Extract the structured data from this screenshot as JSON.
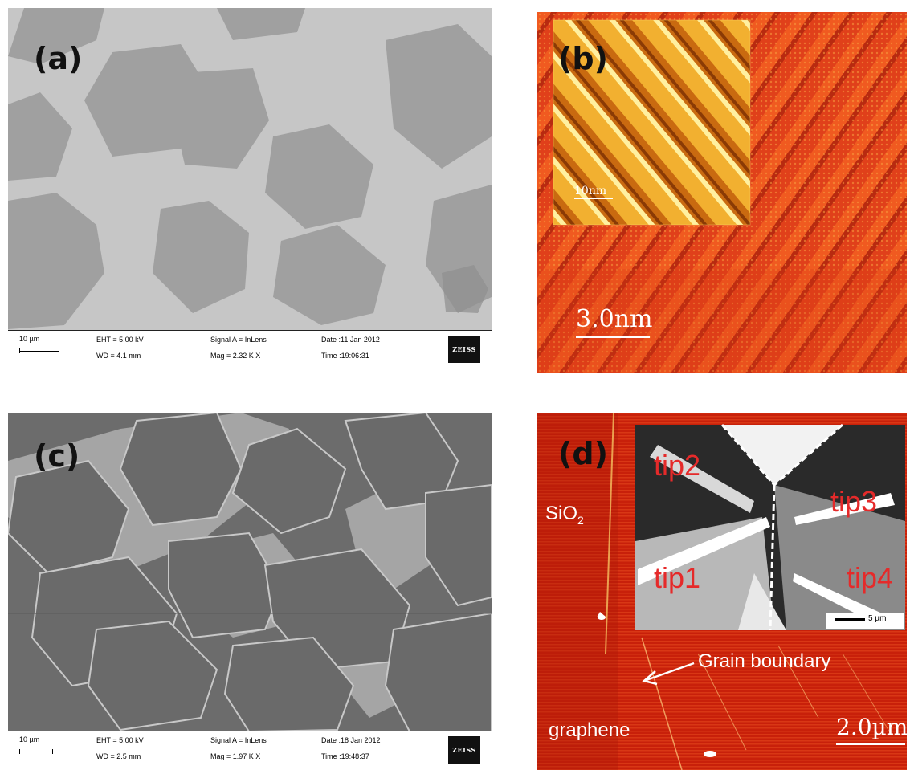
{
  "panels": {
    "a": {
      "label": "(a)",
      "scale": "10 µm",
      "eht": "EHT = 5.00 kV",
      "wd": "WD = 4.1 mm",
      "signal": "Signal A = InLens",
      "mag": "Mag =   2.32 K X",
      "date": "Date :11 Jan 2012",
      "time": "Time :19:06:31",
      "logo": "ZEISS"
    },
    "b": {
      "label": "(b)",
      "scale": "3.0nm",
      "inset_scale": "10nm"
    },
    "c": {
      "label": "(c)",
      "scale": "10 µm",
      "eht": "EHT = 5.00 kV",
      "wd": "WD = 2.5 mm",
      "signal": "Signal A = InLens",
      "mag": "Mag =   1.97 K X",
      "date": "Date :18 Jan 2012",
      "time": "Time :19:48:37",
      "logo": "ZEISS"
    },
    "d": {
      "label": "(d)",
      "sio2": "SiO",
      "sio2_sub": "2",
      "grain_boundary": "Grain boundary",
      "graphene": "graphene",
      "scale": "2.0µm",
      "inset_scale": "5 µm",
      "tips": [
        "tip2",
        "tip3",
        "tip1",
        "tip4"
      ]
    }
  }
}
